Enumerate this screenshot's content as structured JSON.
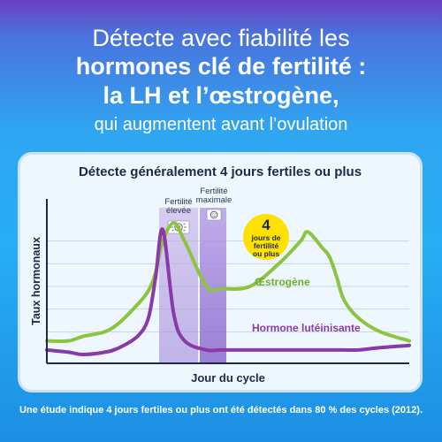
{
  "headline": {
    "line1": "Détecte avec fiabilité les",
    "line2": "hormones clé de fertilité :",
    "line3": "la LH et l’œstrogène,",
    "line4": "qui augmentent avant l’ovulation"
  },
  "chart_data": {
    "type": "line",
    "title": "Détecte généralement 4 jours fertiles ou plus",
    "xlabel": "Jour du cycle",
    "ylabel": "Taux hormonaux",
    "x": [
      0,
      6,
      10,
      16,
      20,
      25,
      28,
      30,
      32,
      35,
      38,
      44,
      48,
      56,
      64,
      70,
      72,
      76,
      78,
      80,
      82,
      86,
      92,
      100
    ],
    "series": [
      {
        "name": "Œstrogène",
        "color": "#8cc440",
        "values": [
          6,
          6,
          8,
          10,
          14,
          22,
          28,
          36,
          50,
          58,
          50,
          30,
          29,
          30,
          40,
          50,
          54,
          47,
          43,
          34,
          24,
          16,
          10,
          6
        ]
      },
      {
        "name": "Hormone lutéinisante",
        "color": "#8a3aa8",
        "values": [
          2,
          1,
          0,
          1,
          3,
          8,
          16,
          34,
          55,
          18,
          6,
          2,
          2,
          2,
          2,
          2,
          2,
          2,
          2,
          2,
          2,
          2,
          3,
          4
        ]
      }
    ],
    "bands": [
      {
        "label": "Fertilité élevée",
        "icon": "smile-sun-icon"
      },
      {
        "label": "Fertilité maximale",
        "icon": "smile-icon"
      }
    ],
    "badge": {
      "number": "4",
      "text": "jours de fertilité ou plus",
      "color": "#ffe100"
    },
    "grid": true
  },
  "footnote": "Une étude indique 4 jours fertiles ou plus ont été détectés dans 80 % des cycles (2012)."
}
